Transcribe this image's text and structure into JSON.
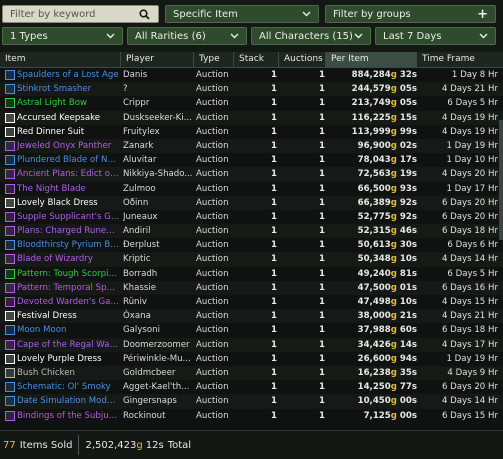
{
  "toolbar": {
    "search_placeholder": "Filter by keyword",
    "item_filter": "Specific Item",
    "groups_label": "Filter by groups",
    "types": "1 Types",
    "rarities": "All Rarities (6)",
    "characters": "All Characters (15)",
    "timeframe": "Last 7 Days"
  },
  "colors": {
    "rare": "#4a8fe0",
    "epic": "#b25ee6",
    "uncommon": "#2ecc40",
    "common": "#ffffff",
    "gold": "#e2bb3a"
  },
  "columns": [
    "Item",
    "Player",
    "Type",
    "Stack",
    "Auctions",
    "Per Item",
    "Time Frame"
  ],
  "rows": [
    {
      "item": "Spaulders of a Lost Age",
      "color": "#4a8fe0",
      "player": "Danis",
      "type": "Auction",
      "stack": "1",
      "auctions": "1",
      "per_gold": "884,284",
      "per_silver": "32s",
      "time": "1 Day 8 Hr"
    },
    {
      "item": "Stinkrot Smasher",
      "color": "#4a8fe0",
      "player": "?",
      "type": "Auction",
      "stack": "1",
      "auctions": "1",
      "per_gold": "244,579",
      "per_silver": "05s",
      "time": "4 Days 21 Hr"
    },
    {
      "item": "Astral Light Bow",
      "color": "#2ecc40",
      "player": "Crippr",
      "type": "Auction",
      "stack": "1",
      "auctions": "1",
      "per_gold": "213,749",
      "per_silver": "05s",
      "time": "6 Days 5 Hr"
    },
    {
      "item": "Accursed Keepsake",
      "color": "#ffffff",
      "player": "Duskseeker-Ki...",
      "type": "Auction",
      "stack": "1",
      "auctions": "1",
      "per_gold": "116,225",
      "per_silver": "15s",
      "time": "4 Days 19 Hr"
    },
    {
      "item": "Red Dinner Suit",
      "color": "#ffffff",
      "player": "Fruitylex",
      "type": "Auction",
      "stack": "1",
      "auctions": "1",
      "per_gold": "113,999",
      "per_silver": "99s",
      "time": "4 Days 19 Hr"
    },
    {
      "item": "Jeweled Onyx Panther",
      "color": "#b25ee6",
      "player": "Zanark",
      "type": "Auction",
      "stack": "1",
      "auctions": "1",
      "per_gold": "96,900",
      "per_silver": "02s",
      "time": "1 Day 19 Hr"
    },
    {
      "item": "Plundered Blade of Nort...",
      "color": "#4a8fe0",
      "player": "Aluvitar",
      "type": "Auction",
      "stack": "1",
      "auctions": "1",
      "per_gold": "78,043",
      "per_silver": "17s",
      "time": "1 Day 10 Hr"
    },
    {
      "item": "Ancient Plans: Edict of t...",
      "color": "#b25ee6",
      "player": "Nikkiya-Shado...",
      "type": "Auction",
      "stack": "1",
      "auctions": "1",
      "per_gold": "72,563",
      "per_silver": "19s",
      "time": "4 Days 20 Hr"
    },
    {
      "item": "The Night Blade",
      "color": "#b25ee6",
      "player": "Zulmoo",
      "type": "Auction",
      "stack": "1",
      "auctions": "1",
      "per_gold": "66,500",
      "per_silver": "93s",
      "time": "1 Day 17 Hr"
    },
    {
      "item": "Lovely Black Dress",
      "color": "#ffffff",
      "player": "Oðinn",
      "type": "Auction",
      "stack": "1",
      "auctions": "1",
      "per_gold": "66,389",
      "per_silver": "92s",
      "time": "6 Days 20 Hr"
    },
    {
      "item": "Supple Supplicant's Glo...",
      "color": "#b25ee6",
      "player": "Juneaux",
      "type": "Auction",
      "stack": "1",
      "auctions": "1",
      "per_gold": "52,775",
      "per_silver": "92s",
      "time": "6 Days 20 Hr"
    },
    {
      "item": "Plans: Charged Runeaxe",
      "color": "#b25ee6",
      "player": "Andiril",
      "type": "Auction",
      "stack": "1",
      "auctions": "1",
      "per_gold": "52,315",
      "per_silver": "46s",
      "time": "6 Days 18 Hr"
    },
    {
      "item": "Bloodthirsty Pyrium Belt",
      "color": "#4a8fe0",
      "player": "Ðerplust",
      "type": "Auction",
      "stack": "1",
      "auctions": "1",
      "per_gold": "50,613",
      "per_silver": "30s",
      "time": "6 Days 6 Hr"
    },
    {
      "item": "Blade of Wizardry",
      "color": "#b25ee6",
      "player": "Kriptic",
      "type": "Auction",
      "stack": "1",
      "auctions": "1",
      "per_gold": "50,348",
      "per_silver": "10s",
      "time": "4 Days 14 Hr"
    },
    {
      "item": "Pattern: Tough Scorpid...",
      "color": "#2ecc40",
      "player": "Borradh",
      "type": "Auction",
      "stack": "1",
      "auctions": "1",
      "per_gold": "49,240",
      "per_silver": "81s",
      "time": "6 Days 5 Hr"
    },
    {
      "item": "Pattern: Temporal Spelt...",
      "color": "#b25ee6",
      "player": "Khassie",
      "type": "Auction",
      "stack": "1",
      "auctions": "1",
      "per_gold": "47,500",
      "per_silver": "01s",
      "time": "6 Days 16 Hr"
    },
    {
      "item": "Devoted Warden's Gaze",
      "color": "#b25ee6",
      "player": "Rüniv",
      "type": "Auction",
      "stack": "1",
      "auctions": "1",
      "per_gold": "47,498",
      "per_silver": "10s",
      "time": "4 Days 15 Hr"
    },
    {
      "item": "Festival Dress",
      "color": "#ffffff",
      "player": "Òxana",
      "type": "Auction",
      "stack": "1",
      "auctions": "1",
      "per_gold": "38,000",
      "per_silver": "21s",
      "time": "4 Days 21 Hr"
    },
    {
      "item": "Moon Moon",
      "color": "#4a8fe0",
      "player": "Galysoni",
      "type": "Auction",
      "stack": "1",
      "auctions": "1",
      "per_gold": "37,988",
      "per_silver": "60s",
      "time": "6 Days 18 Hr"
    },
    {
      "item": "Cape of the Regal Wan...",
      "color": "#b25ee6",
      "player": "Doomerzoomer",
      "type": "Auction",
      "stack": "1",
      "auctions": "1",
      "per_gold": "34,426",
      "per_silver": "14s",
      "time": "4 Days 17 Hr"
    },
    {
      "item": "Lovely Purple Dress",
      "color": "#ffffff",
      "player": "Périwinkle-Mu...",
      "type": "Auction",
      "stack": "1",
      "auctions": "1",
      "per_gold": "26,600",
      "per_silver": "94s",
      "time": "1 Day 19 Hr"
    },
    {
      "item": "Bush Chicken",
      "color": "#bbbbbb",
      "player": "Goldmcbeer",
      "type": "Auction",
      "stack": "1",
      "auctions": "1",
      "per_gold": "16,238",
      "per_silver": "35s",
      "time": "4 Days 9 Hr"
    },
    {
      "item": "Schematic: Ol' Smoky",
      "color": "#4a8fe0",
      "player": "Agget-Kael'th...",
      "type": "Auction",
      "stack": "1",
      "auctions": "1",
      "per_gold": "14,250",
      "per_silver": "77s",
      "time": "6 Days 20 Hr"
    },
    {
      "item": "Date Simulation Modul...",
      "color": "#4a8fe0",
      "player": "Gingersnaps",
      "type": "Auction",
      "stack": "1",
      "auctions": "1",
      "per_gold": "10,450",
      "per_silver": "00s",
      "time": "4 Days 14 Hr"
    },
    {
      "item": "Bindings of the Subjuga...",
      "color": "#b25ee6",
      "player": "Rockinout",
      "type": "Auction",
      "stack": "1",
      "auctions": "1",
      "per_gold": "7,125",
      "per_silver": "00s",
      "time": "6 Days 15 Hr"
    }
  ],
  "footer": {
    "count": "77",
    "sold_label": "Items Sold",
    "total_gold": "2,502,423",
    "total_silver": "12s",
    "total_label": "Total"
  }
}
